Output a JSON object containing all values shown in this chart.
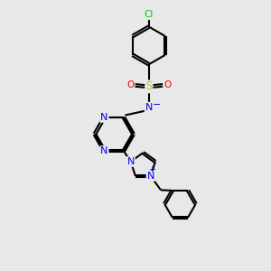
{
  "bg_color": "#e8e8e8",
  "bond_color": "#000000",
  "bond_width": 1.5,
  "heteroatom_colors": {
    "N": "#0000ff",
    "S": "#cccc00",
    "O": "#ff0000",
    "Cl": "#00cc00"
  }
}
